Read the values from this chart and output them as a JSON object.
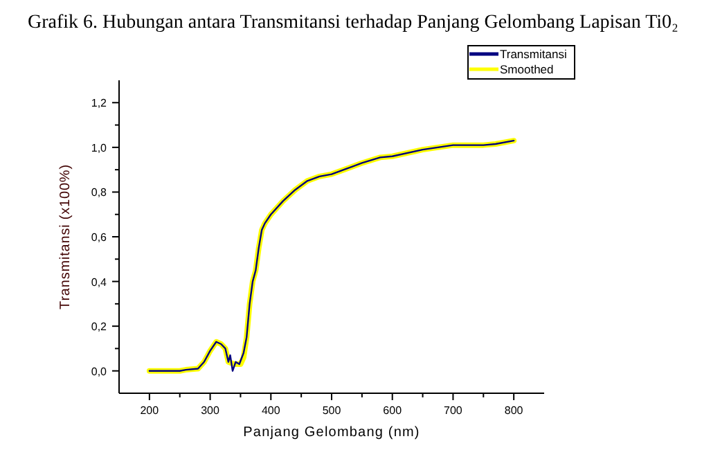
{
  "chart_data": {
    "type": "line",
    "title": "Grafik 6. Hubungan antara Transmitansi terhadap Panjang Gelombang Lapisan Ti0₂",
    "xlabel": "Panjang Gelombang (nm)",
    "ylabel": "Transmitansi (x100%)",
    "xlim": [
      150,
      850
    ],
    "xticks": [
      200,
      {
        "value": 250,
        "label": null
      },
      300,
      {
        "value": 350,
        "label": null
      },
      400,
      {
        "value": 450,
        "label": null
      },
      500,
      {
        "value": 550,
        "label": null
      },
      600,
      {
        "value": 650,
        "label": null
      },
      700,
      {
        "value": 750,
        "label": null
      },
      800
    ],
    "ylim": [
      -0.1,
      1.3
    ],
    "yticks": [
      {
        "value": 0,
        "label": "0,0"
      },
      {
        "value": 0.1,
        "label": null
      },
      {
        "value": 0.2,
        "label": "0,2"
      },
      {
        "value": 0.3,
        "label": null
      },
      {
        "value": 0.4,
        "label": "0,4"
      },
      {
        "value": 0.5,
        "label": null
      },
      {
        "value": 0.6,
        "label": "0,6"
      },
      {
        "value": 0.7,
        "label": null
      },
      {
        "value": 0.8,
        "label": "0,8"
      },
      {
        "value": 0.9,
        "label": null
      },
      {
        "value": 1.0,
        "label": "1,0"
      },
      {
        "value": 1.1,
        "label": null
      },
      {
        "value": 1.2,
        "label": "1,2"
      }
    ],
    "legend": "top right",
    "grid": false,
    "series": [
      {
        "name": "Transmitansi",
        "color": "#000080",
        "x": [
          200,
          250,
          260,
          280,
          290,
          300,
          310,
          318,
          325,
          330,
          333,
          337,
          342,
          348,
          355,
          360,
          365,
          370,
          375,
          380,
          385,
          390,
          400,
          420,
          440,
          460,
          480,
          500,
          520,
          550,
          580,
          600,
          650,
          700,
          750,
          770,
          800
        ],
        "values": [
          0,
          0,
          0.005,
          0.01,
          0.04,
          0.09,
          0.13,
          0.12,
          0.1,
          0.04,
          0.07,
          0.0,
          0.04,
          0.03,
          0.08,
          0.15,
          0.3,
          0.4,
          0.45,
          0.55,
          0.63,
          0.66,
          0.7,
          0.76,
          0.81,
          0.85,
          0.87,
          0.88,
          0.9,
          0.93,
          0.955,
          0.96,
          0.99,
          1.01,
          1.01,
          1.015,
          1.03
        ]
      },
      {
        "name": "Smoothed",
        "color": "#ffff00",
        "x": [
          200,
          250,
          260,
          280,
          290,
          300,
          310,
          318,
          325,
          330,
          340,
          350,
          355,
          360,
          365,
          370,
          375,
          380,
          385,
          390,
          400,
          420,
          440,
          460,
          480,
          500,
          520,
          550,
          580,
          600,
          650,
          700,
          750,
          770,
          800
        ],
        "values": [
          0,
          0,
          0.005,
          0.01,
          0.04,
          0.09,
          0.13,
          0.12,
          0.1,
          0.04,
          0.03,
          0.03,
          0.06,
          0.15,
          0.3,
          0.4,
          0.45,
          0.55,
          0.63,
          0.66,
          0.7,
          0.76,
          0.81,
          0.85,
          0.87,
          0.88,
          0.9,
          0.93,
          0.955,
          0.96,
          0.99,
          1.01,
          1.01,
          1.015,
          1.03
        ]
      }
    ]
  }
}
